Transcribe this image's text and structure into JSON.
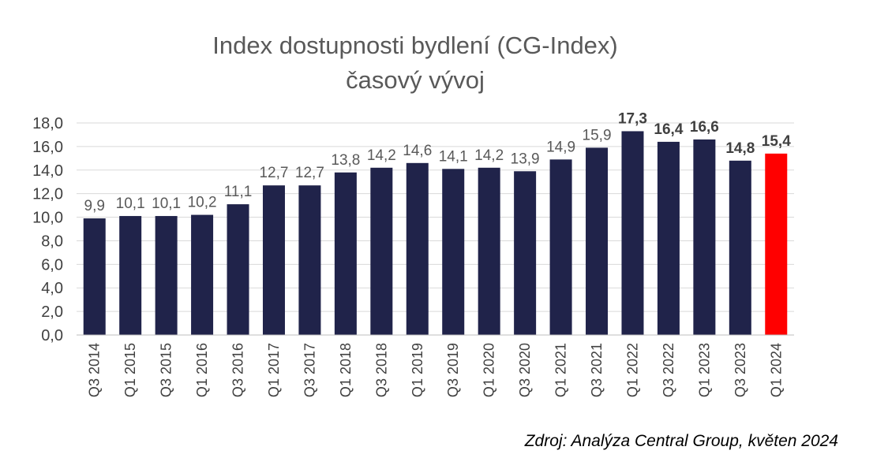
{
  "chart_data": {
    "type": "bar",
    "title": "Index dostupnosti bydlení (CG-Index)",
    "subtitle": "časový vývoj",
    "categories": [
      "Q3 2014",
      "Q1 2015",
      "Q3 2015",
      "Q1 2016",
      "Q3 2016",
      "Q1 2017",
      "Q3 2017",
      "Q1 2018",
      "Q3 2018",
      "Q1 2019",
      "Q3 2019",
      "Q1 2020",
      "Q3 2020",
      "Q1 2021",
      "Q3 2021",
      "Q1 2022",
      "Q3 2022",
      "Q1 2023",
      "Q3 2023",
      "Q1 2024"
    ],
    "values": [
      9.9,
      10.1,
      10.1,
      10.2,
      11.1,
      12.7,
      12.7,
      13.8,
      14.2,
      14.6,
      14.1,
      14.2,
      13.9,
      14.9,
      15.9,
      17.3,
      16.4,
      16.6,
      14.8,
      15.4
    ],
    "data_labels": [
      "9,9",
      "10,1",
      "10,1",
      "10,2",
      "11,1",
      "12,7",
      "12,7",
      "13,8",
      "14,2",
      "14,6",
      "14,1",
      "14,2",
      "13,9",
      "14,9",
      "15,9",
      "17,3",
      "16,4",
      "16,6",
      "14,8",
      "15,4"
    ],
    "bold_labels_from_index": 15,
    "ylim": [
      0,
      18
    ],
    "yticks": [
      "0,0",
      "2,0",
      "4,0",
      "6,0",
      "8,0",
      "10,0",
      "12,0",
      "14,0",
      "16,0",
      "18,0"
    ],
    "grid": true,
    "colors": {
      "bar": "#20234a",
      "highlight": "#ff0000",
      "highlight_index": 19,
      "grid": "#d9d9d9",
      "label": "#595959",
      "bold_label": "#404040"
    }
  },
  "source": "Zdroj: Analýza Central Group, květen 2024"
}
